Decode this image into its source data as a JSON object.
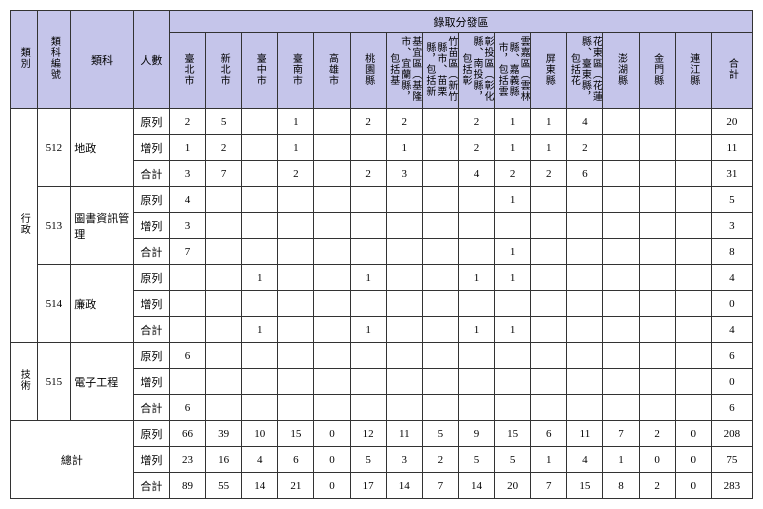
{
  "headers": {
    "category": "類別",
    "subject_code": "類科編號",
    "subject": "類科",
    "people": "人數",
    "region_group": "錄取分發區",
    "total": "合計",
    "regions": [
      "臺北市",
      "新北市",
      "臺中市",
      "臺南市",
      "高雄市",
      "桃園縣",
      "基宜區（基隆市、宜蘭縣，包括基",
      "竹苗區（新竹縣市、苗栗縣，包括新",
      "彰投區（彰化縣、南投縣，包括彰",
      "雲嘉區（雲林縣、嘉義縣市，包括雲",
      "屏東縣",
      "花東區（花蓮縣、臺東縣，包括花",
      "澎湖縣",
      "金門縣",
      "連江縣"
    ]
  },
  "categories": [
    {
      "label": "行政",
      "label_vertical": "行政"
    },
    {
      "label": "技術",
      "label_vertical": "技術"
    }
  ],
  "row_labels": {
    "original": "原列",
    "added": "增列",
    "sum": "合計"
  },
  "subjects": [
    {
      "cat": 0,
      "code": "512",
      "name": "地政",
      "rows": [
        {
          "k": "original",
          "v": [
            "2",
            "5",
            "",
            "1",
            "",
            "2",
            "2",
            "",
            "2",
            "1",
            "1",
            "4",
            "",
            "",
            "",
            "20"
          ]
        },
        {
          "k": "added",
          "v": [
            "1",
            "2",
            "",
            "1",
            "",
            "",
            "1",
            "",
            "2",
            "1",
            "1",
            "2",
            "",
            "",
            "",
            "11"
          ]
        },
        {
          "k": "sum",
          "v": [
            "3",
            "7",
            "",
            "2",
            "",
            "2",
            "3",
            "",
            "4",
            "2",
            "2",
            "6",
            "",
            "",
            "",
            "31"
          ]
        }
      ]
    },
    {
      "cat": 0,
      "code": "513",
      "name": "圖書資訊管理",
      "rows": [
        {
          "k": "original",
          "v": [
            "4",
            "",
            "",
            "",
            "",
            "",
            "",
            "",
            "",
            "1",
            "",
            "",
            "",
            "",
            "",
            "5"
          ]
        },
        {
          "k": "added",
          "v": [
            "3",
            "",
            "",
            "",
            "",
            "",
            "",
            "",
            "",
            "",
            "",
            "",
            "",
            "",
            "",
            "3"
          ]
        },
        {
          "k": "sum",
          "v": [
            "7",
            "",
            "",
            "",
            "",
            "",
            "",
            "",
            "",
            "1",
            "",
            "",
            "",
            "",
            "",
            "8"
          ]
        }
      ]
    },
    {
      "cat": 0,
      "code": "514",
      "name": "廉政",
      "rows": [
        {
          "k": "original",
          "v": [
            "",
            "",
            "1",
            "",
            "",
            "1",
            "",
            "",
            "1",
            "1",
            "",
            "",
            "",
            "",
            "",
            "4"
          ]
        },
        {
          "k": "added",
          "v": [
            "",
            "",
            "",
            "",
            "",
            "",
            "",
            "",
            "",
            "",
            "",
            "",
            "",
            "",
            "",
            "0"
          ]
        },
        {
          "k": "sum",
          "v": [
            "",
            "",
            "1",
            "",
            "",
            "1",
            "",
            "",
            "1",
            "1",
            "",
            "",
            "",
            "",
            "",
            "4"
          ]
        }
      ]
    },
    {
      "cat": 1,
      "code": "515",
      "name": "電子工程",
      "rows": [
        {
          "k": "original",
          "v": [
            "6",
            "",
            "",
            "",
            "",
            "",
            "",
            "",
            "",
            "",
            "",
            "",
            "",
            "",
            "",
            "6"
          ]
        },
        {
          "k": "added",
          "v": [
            "",
            "",
            "",
            "",
            "",
            "",
            "",
            "",
            "",
            "",
            "",
            "",
            "",
            "",
            "",
            "0"
          ]
        },
        {
          "k": "sum",
          "v": [
            "6",
            "",
            "",
            "",
            "",
            "",
            "",
            "",
            "",
            "",
            "",
            "",
            "",
            "",
            "",
            "6"
          ]
        }
      ]
    }
  ],
  "grand_total": {
    "label": "總計",
    "rows": [
      {
        "k": "original",
        "v": [
          "66",
          "39",
          "10",
          "15",
          "0",
          "12",
          "11",
          "5",
          "9",
          "15",
          "6",
          "11",
          "7",
          "2",
          "0",
          "208"
        ]
      },
      {
        "k": "added",
        "v": [
          "23",
          "16",
          "4",
          "6",
          "0",
          "5",
          "3",
          "2",
          "5",
          "5",
          "1",
          "4",
          "1",
          "0",
          "0",
          "75"
        ]
      },
      {
        "k": "sum",
        "v": [
          "89",
          "55",
          "14",
          "21",
          "0",
          "17",
          "14",
          "7",
          "14",
          "20",
          "7",
          "15",
          "8",
          "2",
          "0",
          "283"
        ]
      }
    ]
  },
  "styling": {
    "header_bg": "#c5c5ea",
    "border_color": "#333333",
    "body_bg": "#ffffff",
    "font_family": "PMingLiU, serif",
    "base_font_size": 11
  }
}
